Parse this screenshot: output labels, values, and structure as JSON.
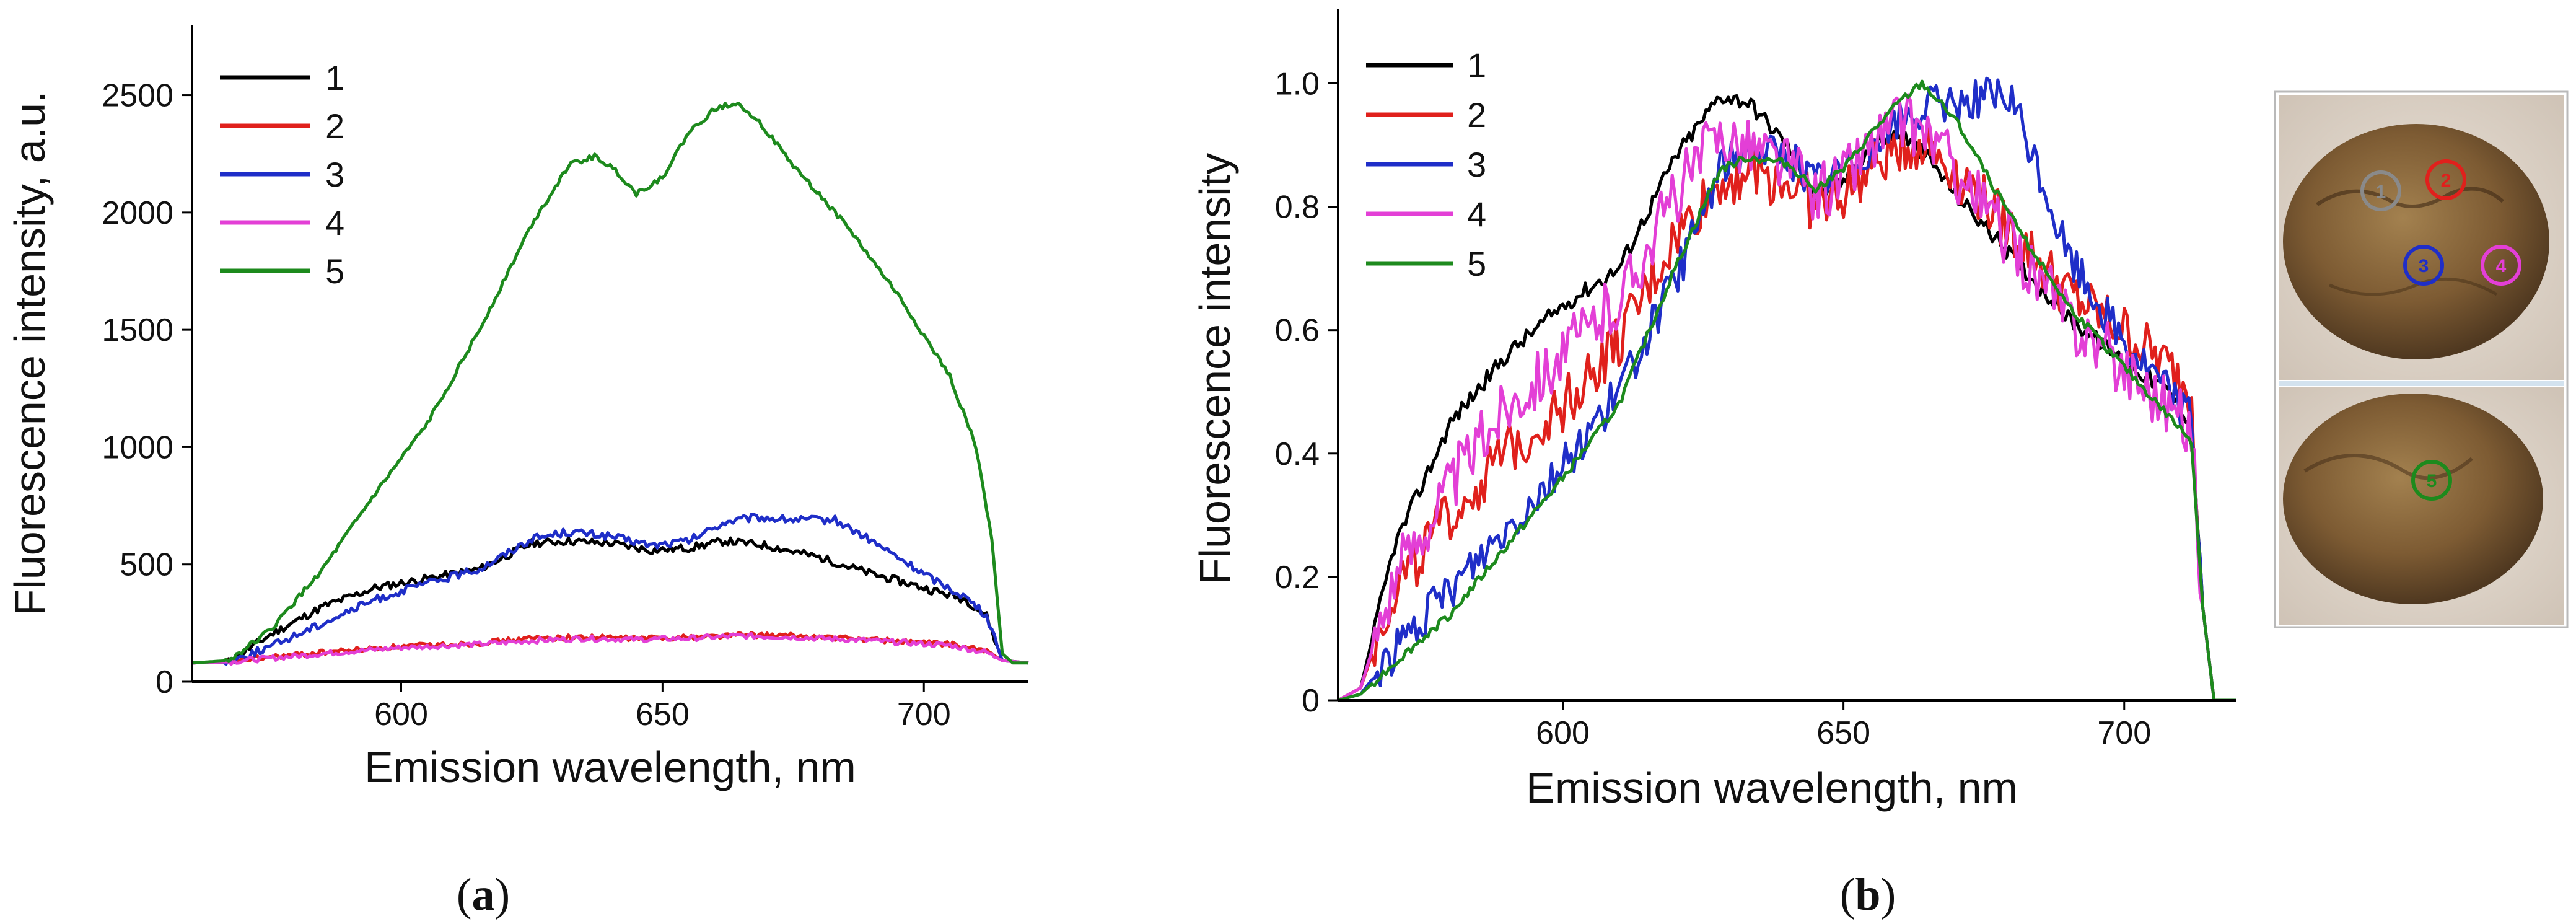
{
  "chart_data": [
    {
      "type": "line",
      "panel_label": "a",
      "xlabel": "Emission wavelength, nm",
      "ylabel": "Fluorescence intensity, a.u.",
      "xlim": [
        560,
        720
      ],
      "ylim": [
        0,
        2800
      ],
      "xticks": [
        600,
        650,
        700
      ],
      "yticks": [
        0,
        500,
        1000,
        1500,
        2000,
        2500
      ],
      "legend_position": "top-left",
      "series": [
        {
          "name": "1",
          "color": "#000000",
          "x": [
            560,
            567,
            575,
            585,
            595,
            605,
            615,
            625,
            632,
            640,
            648,
            655,
            662,
            670,
            680,
            690,
            700,
            708,
            712,
            715,
            720
          ],
          "y": [
            80,
            85,
            200,
            320,
            400,
            440,
            480,
            590,
            600,
            590,
            560,
            570,
            600,
            580,
            530,
            460,
            400,
            350,
            280,
            90,
            80
          ]
        },
        {
          "name": "2",
          "color": "#e0201c",
          "x": [
            560,
            567,
            575,
            585,
            600,
            615,
            625,
            635,
            645,
            655,
            665,
            675,
            690,
            705,
            712,
            715,
            720
          ],
          "y": [
            80,
            85,
            105,
            125,
            150,
            165,
            185,
            190,
            185,
            190,
            200,
            195,
            180,
            160,
            130,
            90,
            80
          ]
        },
        {
          "name": "3",
          "color": "#1f2ec8",
          "x": [
            560,
            567,
            575,
            585,
            595,
            605,
            615,
            625,
            632,
            640,
            648,
            655,
            662,
            668,
            675,
            683,
            690,
            700,
            708,
            712,
            715,
            720
          ],
          "y": [
            80,
            85,
            150,
            250,
            350,
            420,
            480,
            610,
            640,
            620,
            580,
            600,
            680,
            700,
            690,
            690,
            600,
            460,
            360,
            280,
            90,
            80
          ]
        },
        {
          "name": "4",
          "color": "#e33fd6",
          "x": [
            560,
            567,
            575,
            585,
            600,
            615,
            625,
            635,
            645,
            655,
            665,
            675,
            690,
            705,
            712,
            715,
            720
          ],
          "y": [
            80,
            85,
            100,
            120,
            145,
            160,
            175,
            185,
            180,
            185,
            195,
            190,
            175,
            155,
            125,
            90,
            80
          ]
        },
        {
          "name": "5",
          "color": "#1d8a1d",
          "x": [
            560,
            567,
            575,
            585,
            595,
            605,
            615,
            625,
            632,
            637,
            641,
            645,
            650,
            655,
            660,
            664,
            668,
            675,
            685,
            695,
            705,
            710,
            713,
            715,
            717,
            720
          ],
          "y": [
            80,
            90,
            220,
            480,
            800,
            1100,
            1500,
            1950,
            2200,
            2240,
            2180,
            2080,
            2150,
            2340,
            2440,
            2470,
            2400,
            2200,
            1950,
            1650,
            1300,
            1000,
            600,
            120,
            80,
            80
          ]
        }
      ]
    },
    {
      "type": "line",
      "panel_label": "b",
      "xlabel": "Emission wavelength, nm",
      "ylabel": "Fluorescence intensity",
      "xlim": [
        560,
        720
      ],
      "ylim": [
        0,
        1.12
      ],
      "xticks": [
        600,
        650,
        700
      ],
      "yticks": [
        "0",
        "0.2",
        "0.4",
        "0.6",
        "0.8",
        "1.0"
      ],
      "legend_position": "top-left",
      "series": [
        {
          "name": "1",
          "color": "#000000",
          "x": [
            560,
            564,
            570,
            580,
            590,
            600,
            610,
            620,
            628,
            633,
            640,
            645,
            650,
            655,
            660,
            665,
            670,
            680,
            690,
            700,
            708,
            712,
            714,
            716,
            720
          ],
          "y": [
            0,
            0.02,
            0.25,
            0.45,
            0.56,
            0.64,
            0.7,
            0.88,
            0.98,
            0.97,
            0.9,
            0.82,
            0.84,
            0.9,
            0.92,
            0.88,
            0.82,
            0.72,
            0.62,
            0.55,
            0.5,
            0.45,
            0.15,
            0,
            0
          ]
        },
        {
          "name": "2",
          "color": "#e0201c",
          "x": [
            560,
            564,
            570,
            580,
            590,
            600,
            610,
            620,
            628,
            633,
            640,
            645,
            650,
            655,
            660,
            665,
            670,
            680,
            690,
            700,
            708,
            712,
            714,
            716,
            720
          ],
          "y": [
            0,
            0.02,
            0.18,
            0.3,
            0.4,
            0.48,
            0.58,
            0.75,
            0.84,
            0.86,
            0.84,
            0.8,
            0.82,
            0.86,
            0.9,
            0.9,
            0.86,
            0.76,
            0.66,
            0.6,
            0.54,
            0.5,
            0.15,
            0,
            0
          ]
        },
        {
          "name": "3",
          "color": "#1f2ec8",
          "x": [
            560,
            564,
            570,
            580,
            590,
            600,
            610,
            620,
            628,
            633,
            640,
            645,
            650,
            655,
            660,
            665,
            670,
            675,
            680,
            685,
            690,
            700,
            708,
            712,
            714,
            716,
            720
          ],
          "y": [
            0,
            0.01,
            0.08,
            0.18,
            0.28,
            0.38,
            0.5,
            0.68,
            0.86,
            0.9,
            0.88,
            0.84,
            0.86,
            0.9,
            0.94,
            0.96,
            0.97,
            0.98,
            0.97,
            0.85,
            0.72,
            0.58,
            0.5,
            0.46,
            0.15,
            0,
            0
          ]
        },
        {
          "name": "4",
          "color": "#e33fd6",
          "x": [
            560,
            564,
            570,
            580,
            590,
            600,
            610,
            620,
            628,
            633,
            640,
            645,
            650,
            655,
            660,
            665,
            670,
            680,
            690,
            700,
            708,
            712,
            714,
            716,
            720
          ],
          "y": [
            0,
            0.02,
            0.2,
            0.35,
            0.48,
            0.56,
            0.65,
            0.82,
            0.92,
            0.9,
            0.87,
            0.82,
            0.85,
            0.9,
            0.94,
            0.92,
            0.86,
            0.74,
            0.62,
            0.54,
            0.48,
            0.44,
            0.15,
            0,
            0
          ]
        },
        {
          "name": "5",
          "color": "#1d8a1d",
          "x": [
            560,
            564,
            570,
            580,
            590,
            600,
            610,
            620,
            628,
            633,
            640,
            645,
            650,
            655,
            660,
            664,
            670,
            680,
            690,
            700,
            708,
            712,
            714,
            716,
            720
          ],
          "y": [
            0,
            0.01,
            0.06,
            0.14,
            0.25,
            0.36,
            0.48,
            0.7,
            0.86,
            0.88,
            0.87,
            0.83,
            0.86,
            0.92,
            0.97,
            1.0,
            0.94,
            0.78,
            0.64,
            0.54,
            0.46,
            0.42,
            0.15,
            0,
            0
          ]
        }
      ]
    }
  ],
  "photo": {
    "top_markers": [
      {
        "label": "1",
        "color": "#8a8a8a"
      },
      {
        "label": "2",
        "color": "#e0201c"
      },
      {
        "label": "3",
        "color": "#1f2ec8"
      },
      {
        "label": "4",
        "color": "#e33fd6"
      }
    ],
    "bottom_markers": [
      {
        "label": "5",
        "color": "#1d8a1d"
      }
    ]
  },
  "captions": {
    "a": {
      "open": "(",
      "letter": "a",
      "close": ")"
    },
    "b": {
      "open": "(",
      "letter": "b",
      "close": ")"
    }
  }
}
